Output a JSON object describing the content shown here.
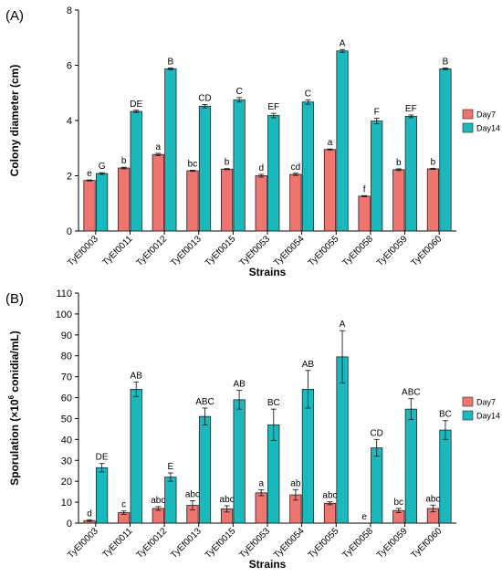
{
  "panels": [
    "(A)",
    "(B)"
  ],
  "chart_data": [
    {
      "type": "bar",
      "panel_label": "(A)",
      "xlabel": "Strains",
      "ylabel": "Colony diameter (cm)",
      "ylim": [
        0,
        8
      ],
      "yticks": [
        0,
        2,
        4,
        6,
        8
      ],
      "legend_position": "right",
      "categories": [
        "TyEf0003",
        "TyEf0011",
        "TyEf0012",
        "TyEf0013",
        "TyEf0015",
        "TyEf0053",
        "TyEf0054",
        "TyEf0055",
        "TyEf0058",
        "TyEf0059",
        "TyEf0060"
      ],
      "series": [
        {
          "name": "Day7",
          "color": "#f07470",
          "values": [
            1.83,
            2.28,
            2.77,
            2.18,
            2.24,
            2.0,
            2.05,
            2.95,
            1.26,
            2.22,
            2.25
          ],
          "errors": [
            0.02,
            0.03,
            0.04,
            0.02,
            0.02,
            0.05,
            0.04,
            0.02,
            0.02,
            0.03,
            0.02
          ],
          "letters": [
            "e",
            "b",
            "a",
            "bc",
            "b",
            "d",
            "cd",
            "a",
            "f",
            "b",
            "b"
          ]
        },
        {
          "name": "Day14",
          "color": "#1ab9bd",
          "values": [
            2.08,
            4.33,
            5.87,
            4.52,
            4.75,
            4.18,
            4.67,
            6.52,
            3.98,
            4.15,
            5.87
          ],
          "errors": [
            0.03,
            0.04,
            0.03,
            0.06,
            0.08,
            0.08,
            0.08,
            0.05,
            0.1,
            0.05,
            0.03
          ],
          "letters": [
            "G",
            "DE",
            "B",
            "CD",
            "C",
            "EF",
            "C",
            "A",
            "F",
            "EF",
            "B"
          ]
        }
      ]
    },
    {
      "type": "bar",
      "panel_label": "(B)",
      "xlabel": "Strains",
      "ylabel_prefix": "Sporulation (×10",
      "ylabel_sup": "6",
      "ylabel_suffix": " conidia/mL)",
      "ylim": [
        0,
        110
      ],
      "yticks": [
        0,
        10,
        20,
        30,
        40,
        50,
        60,
        70,
        80,
        90,
        100,
        110
      ],
      "legend_position": "right",
      "categories": [
        "TyEf0003",
        "TyEf0011",
        "TyEf0012",
        "TyEf0013",
        "TyEf0015",
        "TyEf0053",
        "TyEf0054",
        "TyEf0055",
        "TyEf0058",
        "TyEf0059",
        "TyEf0060"
      ],
      "series": [
        {
          "name": "Day7",
          "color": "#f07470",
          "values": [
            1.2,
            5.0,
            7.0,
            8.5,
            6.8,
            14.5,
            13.5,
            9.5,
            0,
            6.0,
            7.0
          ],
          "errors": [
            0.4,
            0.8,
            0.9,
            2.2,
            1.5,
            1.4,
            2.5,
            0.7,
            0,
            1.0,
            1.6
          ],
          "letters": [
            "d",
            "c",
            "abc",
            "abc",
            "abc",
            "a",
            "ab",
            "abc",
            "e",
            "bc",
            "abc"
          ]
        },
        {
          "name": "Day14",
          "color": "#1ab9bd",
          "values": [
            26.5,
            64.0,
            22.0,
            51.0,
            59.0,
            47.0,
            64.0,
            79.5,
            36.0,
            54.5,
            44.5
          ],
          "errors": [
            2.0,
            3.5,
            2.0,
            4.0,
            4.5,
            7.5,
            9.0,
            12.5,
            4.0,
            5.0,
            4.5
          ],
          "letters": [
            "DE",
            "AB",
            "E",
            "ABC",
            "AB",
            "BC",
            "AB",
            "A",
            "CD",
            "ABC",
            "BC"
          ]
        }
      ]
    }
  ]
}
